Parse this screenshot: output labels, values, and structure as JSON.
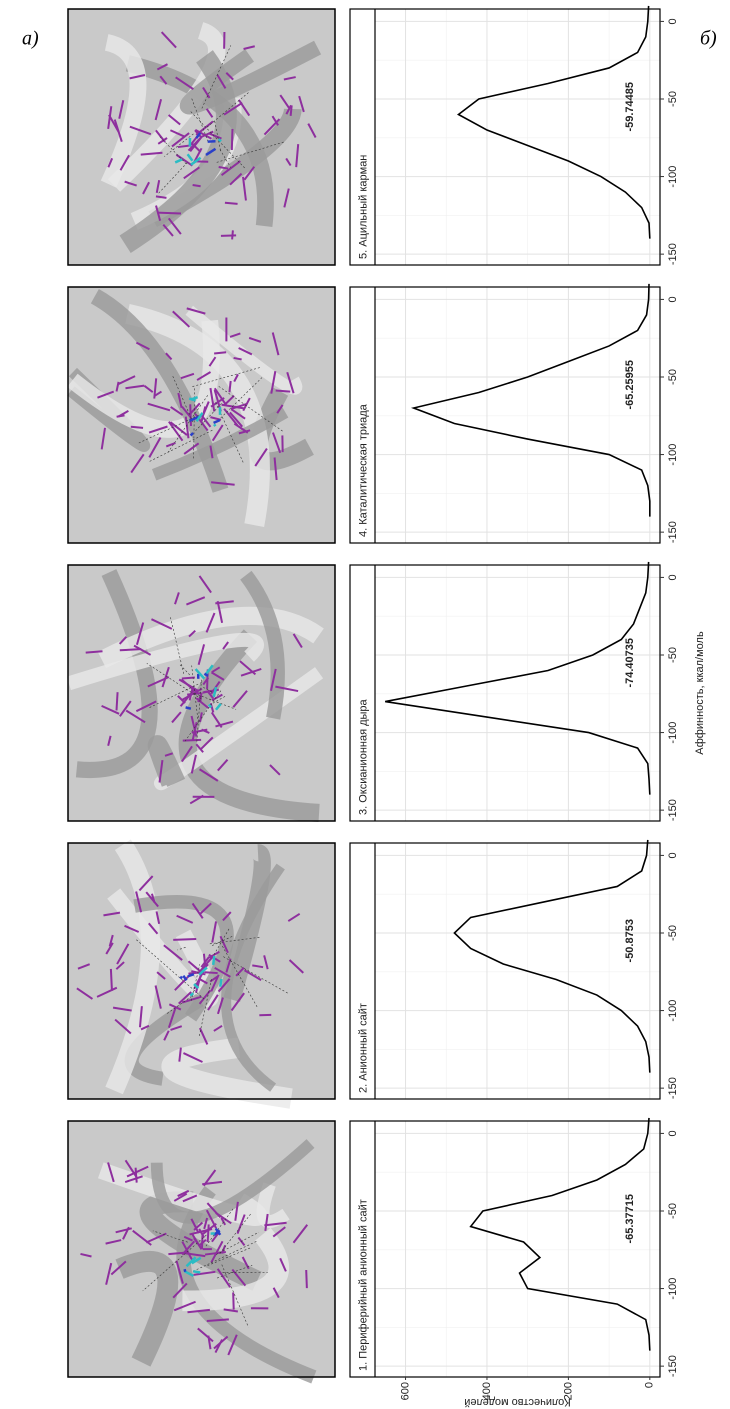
{
  "figure": {
    "label_a": "а)",
    "label_b": "б)",
    "y_label": "Количество моделей",
    "x_label": "Аффинность, ккал/моль"
  },
  "chart_data": [
    {
      "type": "line",
      "title": "1. Периферийный анионный сайт",
      "annotation": "-65.37715",
      "x": [
        -140,
        -130,
        -120,
        -110,
        -100,
        -90,
        -80,
        -70,
        -60,
        -50,
        -40,
        -30,
        -20,
        -10,
        0,
        10
      ],
      "series": [
        {
          "color": "#000000",
          "values": [
            0,
            2,
            10,
            80,
            300,
            320,
            270,
            310,
            440,
            410,
            240,
            130,
            60,
            15,
            5,
            2
          ]
        }
      ],
      "xlim": [
        -157,
        8
      ],
      "ylim": [
        -25,
        675
      ],
      "xticks": [
        -150,
        -100,
        -50,
        0
      ],
      "yticks": [
        0,
        200,
        400,
        600
      ],
      "grid": true
    },
    {
      "type": "line",
      "title": "2. Анионный сайт",
      "annotation": "-50.8753",
      "x": [
        -140,
        -130,
        -120,
        -110,
        -100,
        -90,
        -80,
        -70,
        -60,
        -50,
        -40,
        -30,
        -20,
        -10,
        0,
        10
      ],
      "series": [
        {
          "color": "#000000",
          "values": [
            0,
            2,
            10,
            30,
            70,
            130,
            230,
            360,
            440,
            480,
            440,
            260,
            80,
            20,
            8,
            5
          ]
        }
      ],
      "xlim": [
        -157,
        8
      ],
      "ylim": [
        -25,
        675
      ],
      "xticks": [
        -150,
        -100,
        -50,
        0
      ],
      "yticks": [
        0,
        200,
        400,
        600
      ],
      "grid": true
    },
    {
      "type": "line",
      "title": "3. Оксианионная дыра",
      "annotation": "-74.40735",
      "x": [
        -140,
        -130,
        -120,
        -110,
        -100,
        -90,
        -80,
        -70,
        -60,
        -50,
        -40,
        -30,
        -20,
        -10,
        0,
        10
      ],
      "series": [
        {
          "color": "#000000",
          "values": [
            0,
            2,
            5,
            30,
            150,
            400,
            650,
            450,
            250,
            140,
            70,
            40,
            25,
            10,
            5,
            3
          ]
        }
      ],
      "xlim": [
        -157,
        8
      ],
      "ylim": [
        -25,
        675
      ],
      "xticks": [
        -150,
        -100,
        -50,
        0
      ],
      "yticks": [
        0,
        200,
        400,
        600
      ],
      "grid": true
    },
    {
      "type": "line",
      "title": "4. Каталитическая триада",
      "annotation": "-65.25955",
      "x": [
        -140,
        -130,
        -120,
        -110,
        -100,
        -90,
        -80,
        -70,
        -60,
        -50,
        -40,
        -30,
        -20,
        -10,
        0,
        10
      ],
      "series": [
        {
          "color": "#000000",
          "values": [
            0,
            0,
            5,
            20,
            100,
            300,
            480,
            580,
            420,
            300,
            200,
            100,
            30,
            8,
            3,
            2
          ]
        }
      ],
      "xlim": [
        -157,
        8
      ],
      "ylim": [
        -25,
        675
      ],
      "xticks": [
        -150,
        -100,
        -50,
        0
      ],
      "yticks": [
        0,
        200,
        400,
        600
      ],
      "grid": true
    },
    {
      "type": "line",
      "title": "5. Ацильный карман",
      "annotation": "-59.74485",
      "x": [
        -140,
        -130,
        -120,
        -110,
        -100,
        -90,
        -80,
        -70,
        -60,
        -50,
        -40,
        -30,
        -20,
        -10,
        0,
        10
      ],
      "series": [
        {
          "color": "#000000",
          "values": [
            0,
            2,
            20,
            60,
            120,
            200,
            300,
            400,
            470,
            420,
            250,
            100,
            30,
            10,
            5,
            3
          ]
        }
      ],
      "xlim": [
        -157,
        8
      ],
      "ylim": [
        -25,
        675
      ],
      "xticks": [
        -150,
        -100,
        -50,
        0
      ],
      "yticks": [
        0,
        200,
        400,
        600
      ],
      "grid": true
    }
  ]
}
